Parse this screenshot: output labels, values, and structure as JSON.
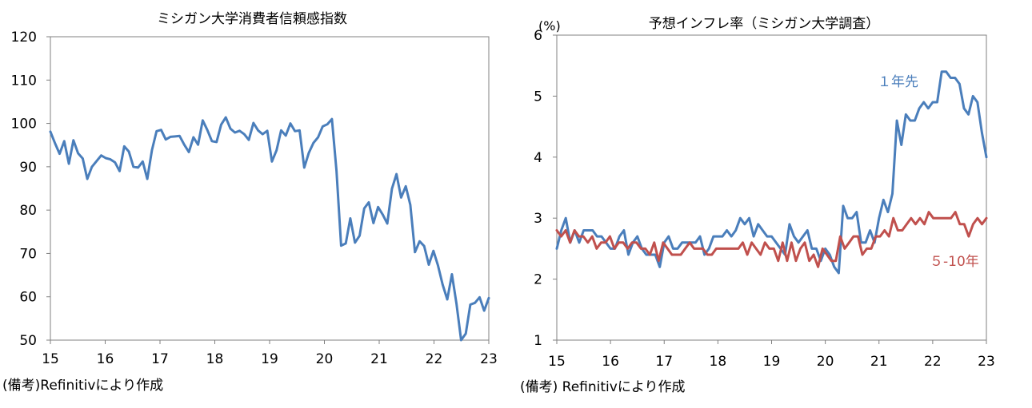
{
  "chart_data": [
    {
      "type": "line",
      "title": "ミシガン大学消費者信頼感指数",
      "ylim": [
        50,
        120
      ],
      "yticks": [
        "120",
        "110",
        "100",
        "90",
        "80",
        "70",
        "60",
        "50"
      ],
      "xticks": [
        "15",
        "16",
        "17",
        "18",
        "19",
        "20",
        "21",
        "22",
        "23"
      ],
      "xlim": [
        15,
        23
      ],
      "grid": false,
      "note": "(備考)Refinitivにより作成",
      "series": [
        {
          "color": "#4a7ebb",
          "values": [
            98.1,
            95.4,
            93.0,
            95.9,
            90.7,
            96.1,
            93.1,
            91.9,
            87.2,
            90.0,
            91.3,
            92.6,
            92.0,
            91.7,
            91.0,
            89.0,
            94.7,
            93.5,
            90.0,
            89.8,
            91.2,
            87.2,
            93.8,
            98.2,
            98.5,
            96.3,
            96.9,
            97.0,
            97.1,
            95.1,
            93.4,
            96.8,
            95.1,
            100.7,
            98.5,
            95.9,
            95.7,
            99.7,
            101.4,
            98.8,
            97.9,
            98.3,
            97.5,
            96.2,
            100.1,
            98.4,
            97.5,
            98.3,
            91.2,
            93.8,
            98.4,
            97.2,
            100.0,
            98.2,
            98.4,
            89.8,
            93.2,
            95.5,
            96.8,
            99.3,
            99.8,
            101.0,
            89.1,
            71.8,
            72.3,
            78.1,
            72.5,
            74.1,
            80.4,
            81.8,
            77.0,
            80.7,
            79.0,
            76.9,
            84.9,
            88.3,
            82.9,
            85.5,
            81.2,
            70.3,
            72.8,
            71.7,
            67.4,
            70.6,
            67.2,
            62.8,
            59.4,
            65.2,
            58.4,
            50.0,
            51.5,
            58.2,
            58.6,
            59.9,
            56.8,
            59.7
          ]
        }
      ]
    },
    {
      "type": "line",
      "title": "予想インフレ率（ミシガン大学調査）",
      "yunit": "(%)",
      "ylim": [
        1,
        6
      ],
      "yticks": [
        "6",
        "5",
        "4",
        "3",
        "2",
        "1"
      ],
      "xticks": [
        "15",
        "16",
        "17",
        "18",
        "19",
        "20",
        "21",
        "22",
        "23"
      ],
      "xlim": [
        15,
        23
      ],
      "grid": false,
      "note": "(備考) Refinitivにより作成",
      "series": [
        {
          "name": "１年先",
          "color": "#4a7ebb",
          "values": [
            2.5,
            2.8,
            3.0,
            2.6,
            2.8,
            2.6,
            2.8,
            2.8,
            2.8,
            2.7,
            2.7,
            2.6,
            2.5,
            2.5,
            2.7,
            2.8,
            2.4,
            2.6,
            2.7,
            2.5,
            2.4,
            2.4,
            2.4,
            2.2,
            2.6,
            2.7,
            2.5,
            2.5,
            2.6,
            2.6,
            2.6,
            2.6,
            2.7,
            2.4,
            2.5,
            2.7,
            2.7,
            2.7,
            2.8,
            2.7,
            2.8,
            3.0,
            2.9,
            3.0,
            2.7,
            2.9,
            2.8,
            2.7,
            2.7,
            2.6,
            2.5,
            2.4,
            2.9,
            2.7,
            2.6,
            2.7,
            2.8,
            2.5,
            2.5,
            2.3,
            2.5,
            2.4,
            2.2,
            2.1,
            3.2,
            3.0,
            3.0,
            3.1,
            2.6,
            2.6,
            2.8,
            2.6,
            3.0,
            3.3,
            3.1,
            3.4,
            4.6,
            4.2,
            4.7,
            4.6,
            4.6,
            4.8,
            4.9,
            4.8,
            4.9,
            4.9,
            5.4,
            5.4,
            5.3,
            5.3,
            5.2,
            4.8,
            4.7,
            5.0,
            4.9,
            4.4,
            4.0
          ]
        },
        {
          "name": "５-10年",
          "color": "#c0504d",
          "values": [
            2.8,
            2.7,
            2.8,
            2.6,
            2.8,
            2.7,
            2.7,
            2.6,
            2.7,
            2.5,
            2.6,
            2.6,
            2.7,
            2.5,
            2.6,
            2.6,
            2.5,
            2.6,
            2.6,
            2.5,
            2.5,
            2.4,
            2.6,
            2.3,
            2.6,
            2.5,
            2.4,
            2.4,
            2.4,
            2.5,
            2.6,
            2.5,
            2.5,
            2.5,
            2.4,
            2.4,
            2.5,
            2.5,
            2.5,
            2.5,
            2.5,
            2.5,
            2.6,
            2.4,
            2.6,
            2.5,
            2.4,
            2.6,
            2.5,
            2.5,
            2.3,
            2.6,
            2.3,
            2.6,
            2.3,
            2.5,
            2.6,
            2.3,
            2.4,
            2.2,
            2.5,
            2.4,
            2.3,
            2.3,
            2.7,
            2.5,
            2.6,
            2.7,
            2.7,
            2.4,
            2.5,
            2.5,
            2.7,
            2.7,
            2.8,
            2.7,
            3.0,
            2.8,
            2.8,
            2.9,
            3.0,
            2.9,
            3.0,
            2.9,
            3.1,
            3.0,
            3.0,
            3.0,
            3.0,
            3.0,
            3.1,
            2.9,
            2.9,
            2.7,
            2.9,
            3.0,
            2.9,
            3.0
          ]
        }
      ]
    }
  ]
}
